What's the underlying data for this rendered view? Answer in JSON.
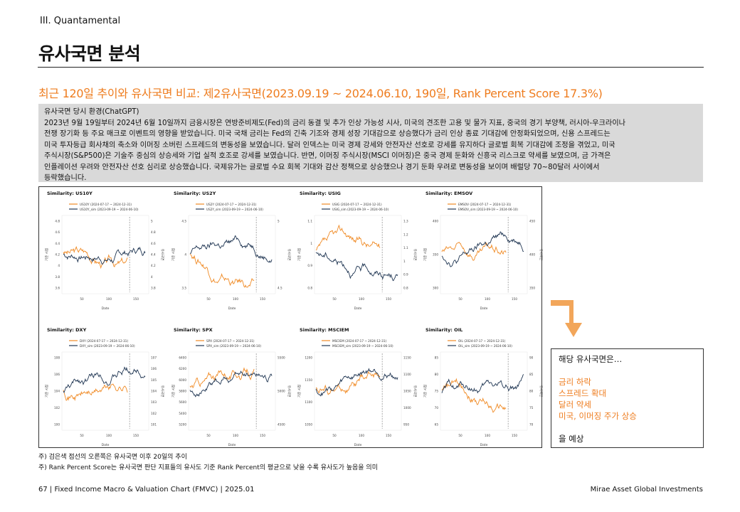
{
  "header": {
    "section": "III. Quantamental",
    "title": "유사국면 분석"
  },
  "subtitle": "최근 120일 추이와 유사국면 비교: 제2유사국면(2023.09.19 ~ 2024.06.10, 190일, Rank Percent Score 17.3%)",
  "environment": {
    "heading": "유사국면 당시 환경(ChatGPT)",
    "lines": [
      "2023년 9월 19일부터 2024년 6월 10일까지 금융시장은 연방준비제도(Fed)의 금리 동결 및 추가 인상 가능성 시사, 미국의 견조한 고용 및 물가 지표, 중국의 경기 부양책, 러시아-우크라이나",
      "전쟁 장기화 등 주요 매크로 이벤트의 영향을 받았습니다. 미국 국채 금리는 Fed의 긴축 기조와 경제 성장 기대감으로 상승했다가 금리 인상 종료 기대감에 안정화되었으며, 신용 스프레드는",
      "미국 투자등급 회사채의 축소와 이머징 소버린 스프레드의 변동성을 보였습니다. 달러 인덱스는 미국 경제 강세와 안전자산 선호로 강세를 유지하다 글로벌 회복 기대감에 조정을 겪었고, 미국",
      "주식시장(S&P500)은 기술주 중심의 상승세와 기업 실적 호조로 강세를 보였습니다. 반면, 이머징 주식시장(MSCI 이머징)은 중국 경제 둔화와 신흥국 리스크로 약세를 보였으며, 금 가격은",
      "인플레이션 우려와 안전자산 선호 심리로 상승했습니다. 국제유가는 글로벌 수요 회복 기대와 감산 정책으로 상승했으나 경기 둔화 우려로 변동성을 보이며 배럴당 70~80달러 사이에서",
      "등락했습니다."
    ]
  },
  "charts_common": {
    "legend_recent": "(2024-07-17 ~ 2024-12-31)",
    "legend_sim": "_sim (2023-09-19 ~ 2024-06-10)",
    "xlabel": "Date",
    "ylabel_left": "기준 시점",
    "ylabel_right": "유사국면",
    "colors": {
      "recent": "#f08a24",
      "sim": "#1f3552"
    }
  },
  "chart_data": [
    {
      "type": "line",
      "title": "Similarity: US10Y",
      "series": [
        {
          "name": "US10Y (2024-07-17 ~ 2024-12-31)"
        },
        {
          "name": "US10Y_sim (2023-09-19 ~ 2024-06-10)"
        }
      ],
      "left_ticks": [
        "3.6",
        "3.8",
        "4",
        "4.2",
        "4.4",
        "4.6",
        "4.8"
      ],
      "right_ticks": [
        "3.8",
        "4",
        "4.2",
        "4.4",
        "4.6",
        "4.8",
        "5"
      ],
      "x_ticks": [
        "50",
        "100",
        "150"
      ]
    },
    {
      "type": "line",
      "title": "Similarity: US2Y",
      "series": [
        {
          "name": "US2Y (2024-07-17 ~ 2024-12-31)"
        },
        {
          "name": "US2Y_sim (2023-09-19 ~ 2024-06-10)"
        }
      ],
      "left_ticks": [
        "3.5",
        "4",
        "4.5"
      ],
      "right_ticks": [
        "4.5",
        "5"
      ],
      "x_ticks": [
        "50",
        "100",
        "150"
      ]
    },
    {
      "type": "line",
      "title": "Similarity: USIG",
      "series": [
        {
          "name": "USIG (2024-07-17 ~ 2024-12-31)"
        },
        {
          "name": "USIG_sim (2023-09-19 ~ 2024-06-10)"
        }
      ],
      "left_ticks": [
        "0.8",
        "0.9",
        "1",
        "1.1"
      ],
      "right_ticks": [
        "0.8",
        "0.9",
        "1",
        "1.1",
        "1.2",
        "1.3"
      ],
      "x_ticks": [
        "50",
        "100",
        "150"
      ]
    },
    {
      "type": "line",
      "title": "Similarity: EMSOV",
      "series": [
        {
          "name": "EMSOV (2024-07-17 ~ 2024-12-31)"
        },
        {
          "name": "EMSOV_sim (2023-09-19 ~ 2024-06-10)"
        }
      ],
      "left_ticks": [
        "300",
        "350",
        "400"
      ],
      "right_ticks": [
        "350",
        "400",
        "450"
      ],
      "x_ticks": [
        "50",
        "100",
        "150"
      ]
    },
    {
      "type": "line",
      "title": "Similarity: DXY",
      "series": [
        {
          "name": "DXY (2024-07-17 ~ 2024-12-31)"
        },
        {
          "name": "DXY_sim (2023-09-19 ~ 2024-06-10)"
        }
      ],
      "left_ticks": [
        "100",
        "102",
        "104",
        "106",
        "108"
      ],
      "right_ticks": [
        "101",
        "102",
        "103",
        "104",
        "105",
        "106",
        "107"
      ],
      "x_ticks": [
        "50",
        "100",
        "150"
      ]
    },
    {
      "type": "line",
      "title": "Similarity: SPX",
      "series": [
        {
          "name": "SPX (2024-07-17 ~ 2024-12-31)"
        },
        {
          "name": "SPX_sim (2023-09-19 ~ 2024-06-10)"
        }
      ],
      "left_ticks": [
        "5200",
        "5400",
        "5600",
        "5800",
        "6000",
        "6200",
        "6400"
      ],
      "right_ticks": [
        "4500",
        "5000",
        "5500"
      ],
      "x_ticks": [
        "50",
        "100",
        "150"
      ]
    },
    {
      "type": "line",
      "title": "Similarity: MSCIEM",
      "series": [
        {
          "name": "MSCIEM (2024-07-17 ~ 2024-12-31)"
        },
        {
          "name": "MSCIEM_sim (2023-09-19 ~ 2024-06-10)"
        }
      ],
      "left_ticks": [
        "1050",
        "1100",
        "1150",
        "1200"
      ],
      "right_ticks": [
        "950",
        "1000",
        "1050",
        "1100",
        "1150"
      ],
      "x_ticks": [
        "50",
        "100",
        "150"
      ]
    },
    {
      "type": "line",
      "title": "Similarity: OIL",
      "series": [
        {
          "name": "OIL (2024-07-17 ~ 2024-12-31)"
        },
        {
          "name": "OIL_sim (2023-09-19 ~ 2024-06-10)"
        }
      ],
      "left_ticks": [
        "65",
        "70",
        "75",
        "80",
        "85"
      ],
      "right_ticks": [
        "70",
        "75",
        "80",
        "85",
        "90"
      ],
      "x_ticks": [
        "50",
        "100",
        "150"
      ]
    }
  ],
  "conclusion": {
    "intro": "해당 유사국면은…",
    "items": [
      "금리 하락",
      "스프레드 확대",
      "달러 약세",
      "미국, 이머징 주가 상승"
    ],
    "outro": "을 예상"
  },
  "notes": [
    "주) 검은색 점선의 오른쪽은 유사국면 이후 20일의 추이",
    "주) Rank Percent Score는 유사국면 판단 지표들의 유사도 기준 Rank Percent의 평균으로 낮을 수록 유사도가 높음을 의미"
  ],
  "footer": {
    "left": "67 | Fixed Income Macro & Valuation Chart (FMVC) | 2025.01",
    "right": "Mirae Asset Global Investments"
  }
}
